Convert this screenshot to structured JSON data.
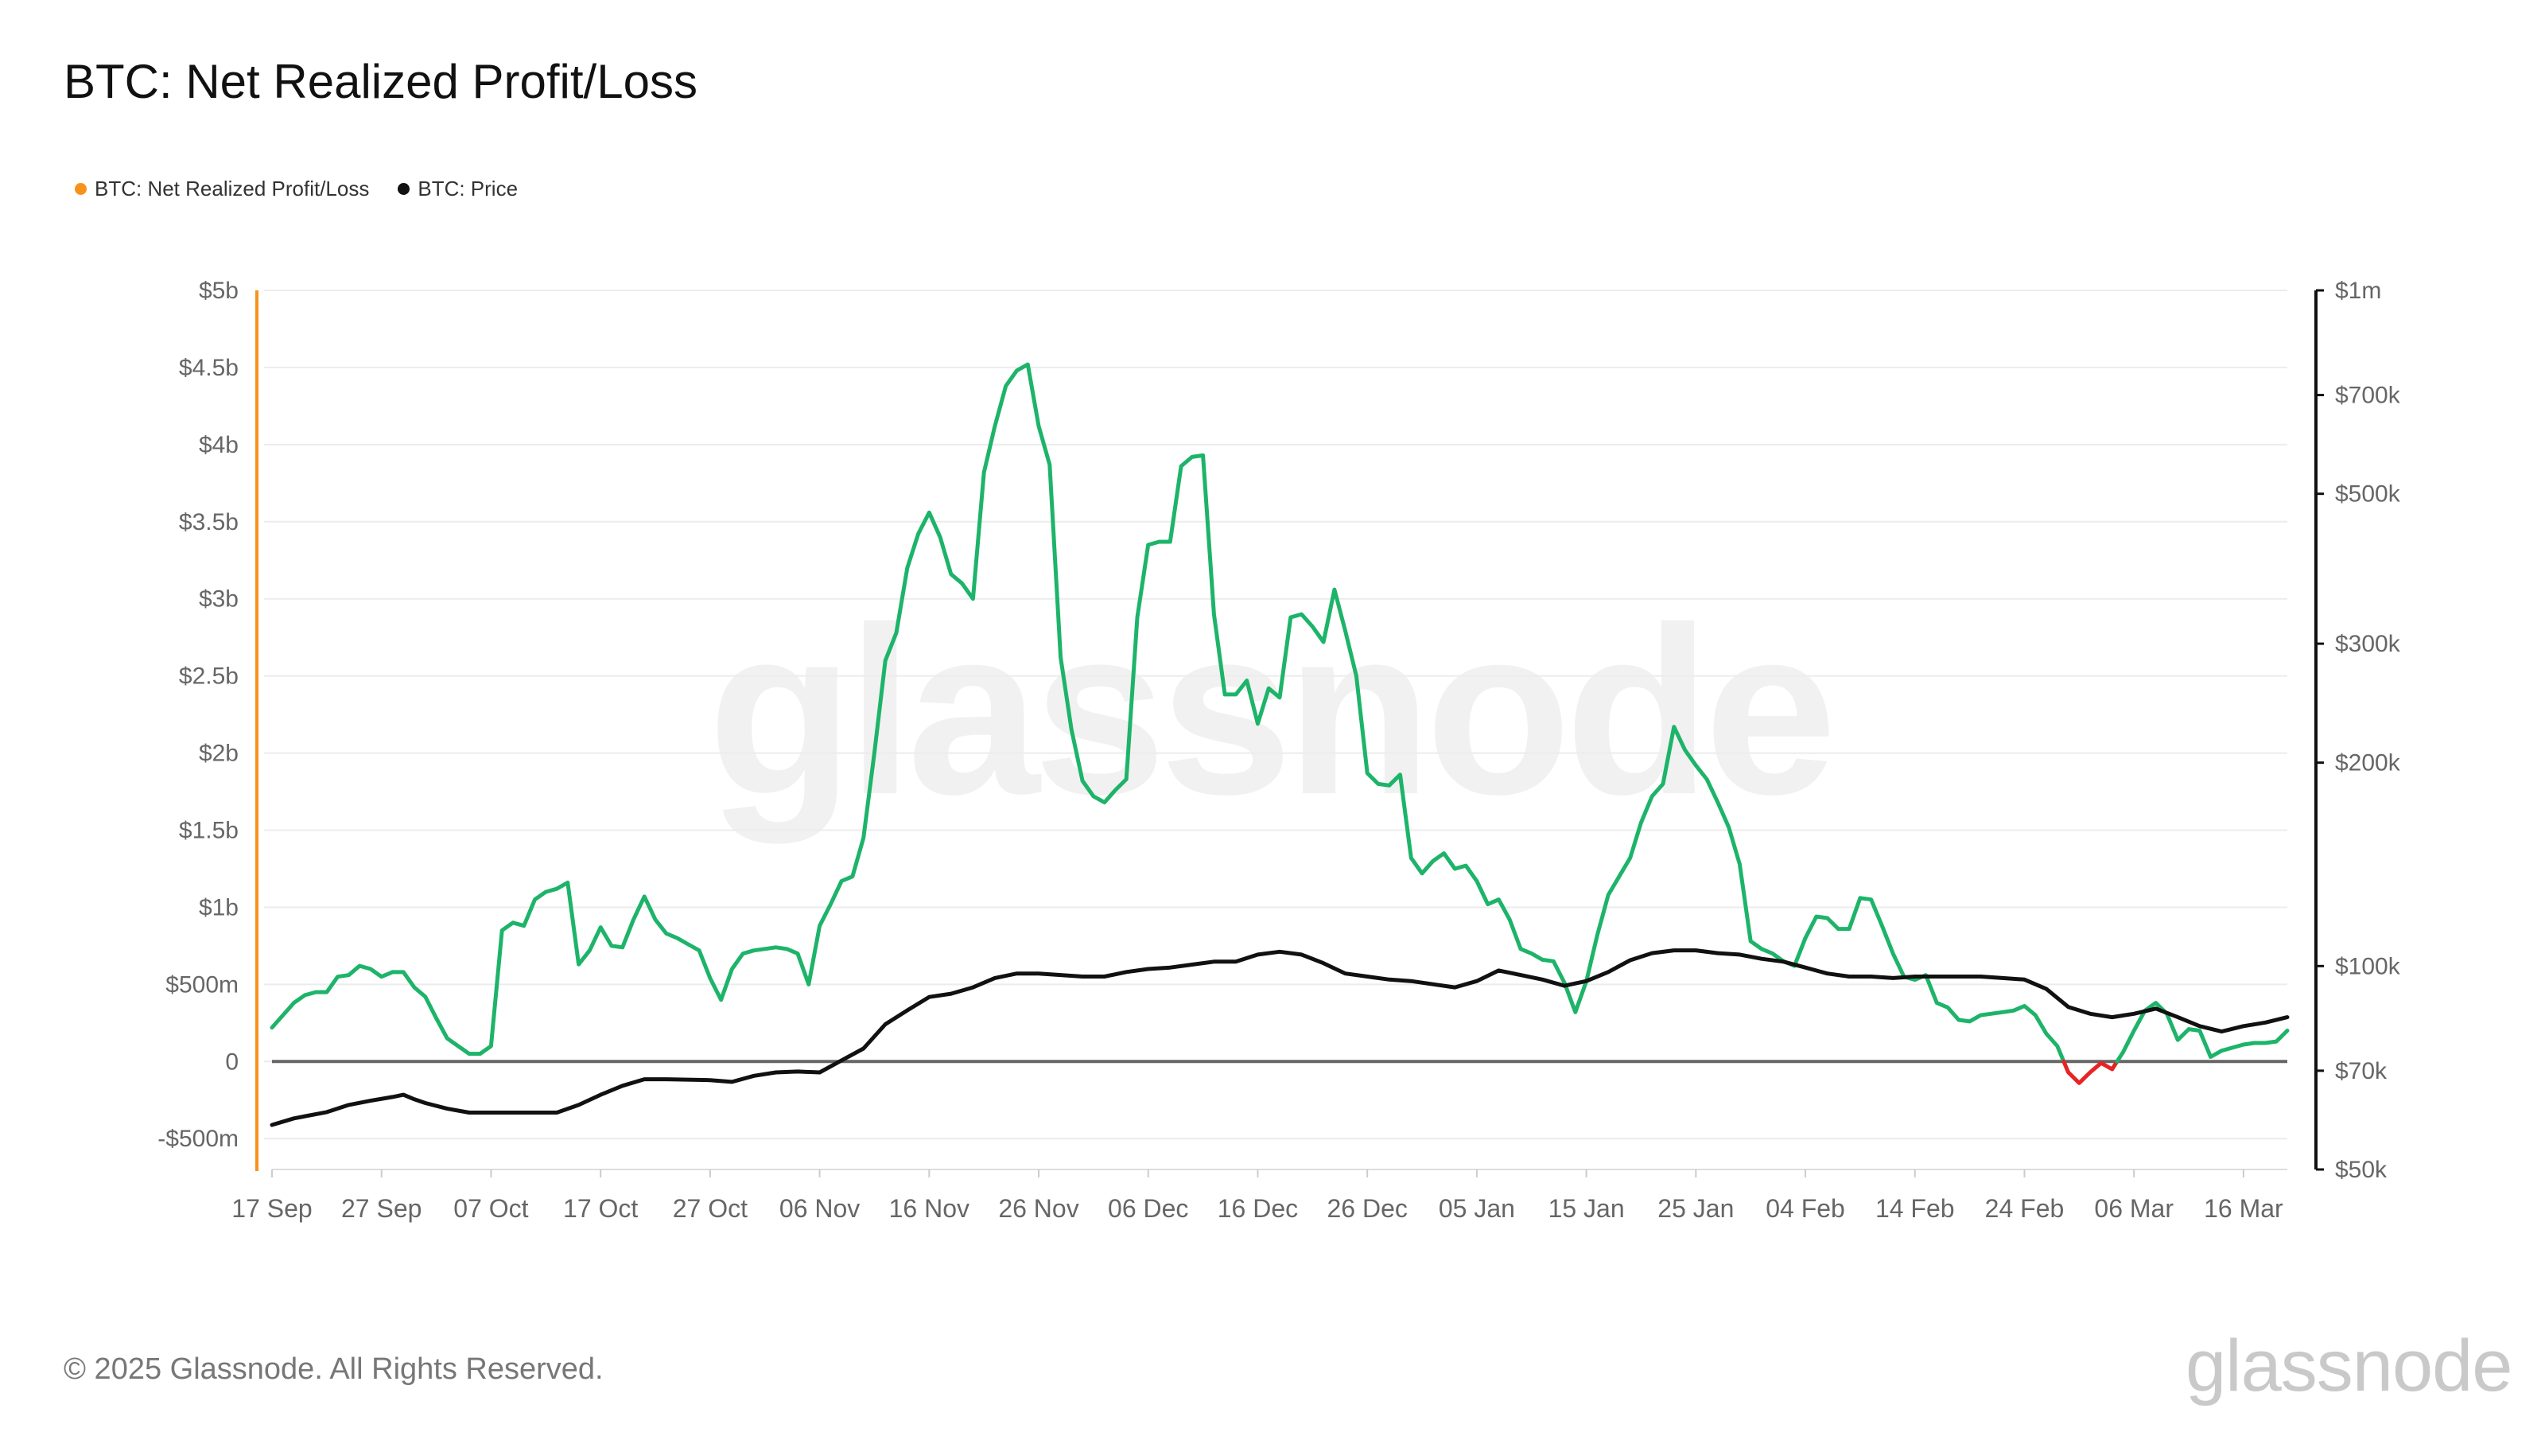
{
  "title": "BTC: Net Realized Profit/Loss",
  "legend": [
    {
      "label": "BTC: Net Realized Profit/Loss",
      "color": "#f7931a"
    },
    {
      "label": "BTC: Price",
      "color": "#111111"
    }
  ],
  "footer": "© 2025 Glassnode. All Rights Reserved.",
  "brand": "glassnode",
  "watermark": "glassnode",
  "chart_data": {
    "type": "line",
    "x_tick_labels": [
      "17 Sep",
      "27 Sep",
      "07 Oct",
      "17 Oct",
      "27 Oct",
      "06 Nov",
      "16 Nov",
      "26 Nov",
      "06 Dec",
      "16 Dec",
      "26 Dec",
      "05 Jan",
      "15 Jan",
      "25 Jan",
      "04 Feb",
      "14 Feb",
      "24 Feb",
      "06 Mar",
      "16 Mar"
    ],
    "x_range_days": [
      0,
      184
    ],
    "y_left_ticks": [
      "-$500m",
      "0",
      "$500m",
      "$1b",
      "$1.5b",
      "$2b",
      "$2.5b",
      "$3b",
      "$3.5b",
      "$4b",
      "$4.5b",
      "$5b"
    ],
    "y_left_tick_values": [
      -0.5,
      0,
      0.5,
      1,
      1.5,
      2,
      2.5,
      3,
      3.5,
      4,
      4.5,
      5
    ],
    "y_left_unit": "billions USD",
    "y_left_range": [
      -0.7,
      5
    ],
    "y_right_ticks": [
      "$50k",
      "$70k",
      "$100k",
      "$200k",
      "$300k",
      "$500k",
      "$700k",
      "$1m"
    ],
    "y_right_tick_values": [
      50000,
      70000,
      100000,
      200000,
      300000,
      500000,
      700000,
      1000000
    ],
    "y_right_scale": "log",
    "y_right_range": [
      50000,
      1000000
    ],
    "colors": {
      "profit": "#1db46a",
      "loss": "#e62424",
      "price": "#111111",
      "zero": "#666666",
      "left_axis": "#f7931a",
      "right_axis": "#111111",
      "grid": "#ececec"
    },
    "series": [
      {
        "name": "BTC: Net Realized Profit/Loss",
        "points": [
          [
            0,
            0.22
          ],
          [
            1,
            0.3
          ],
          [
            2,
            0.38
          ],
          [
            3,
            0.43
          ],
          [
            4,
            0.45
          ],
          [
            5,
            0.45
          ],
          [
            6,
            0.55
          ],
          [
            7,
            0.56
          ],
          [
            8,
            0.62
          ],
          [
            9,
            0.6
          ],
          [
            10,
            0.55
          ],
          [
            11,
            0.58
          ],
          [
            12,
            0.58
          ],
          [
            13,
            0.48
          ],
          [
            14,
            0.42
          ],
          [
            15,
            0.28
          ],
          [
            16,
            0.15
          ],
          [
            17,
            0.1
          ],
          [
            18,
            0.05
          ],
          [
            19,
            0.05
          ],
          [
            20,
            0.1
          ],
          [
            21,
            0.85
          ],
          [
            22,
            0.9
          ],
          [
            23,
            0.88
          ],
          [
            24,
            1.05
          ],
          [
            25,
            1.1
          ],
          [
            26,
            1.12
          ],
          [
            27,
            1.16
          ],
          [
            28,
            0.63
          ],
          [
            29,
            0.72
          ],
          [
            30,
            0.87
          ],
          [
            31,
            0.75
          ],
          [
            32,
            0.74
          ],
          [
            33,
            0.92
          ],
          [
            34,
            1.07
          ],
          [
            35,
            0.92
          ],
          [
            36,
            0.83
          ],
          [
            37,
            0.8
          ],
          [
            38,
            0.76
          ],
          [
            39,
            0.72
          ],
          [
            40,
            0.54
          ],
          [
            41,
            0.4
          ],
          [
            42,
            0.6
          ],
          [
            43,
            0.7
          ],
          [
            44,
            0.72
          ],
          [
            45,
            0.73
          ],
          [
            46,
            0.74
          ],
          [
            47,
            0.73
          ],
          [
            48,
            0.7
          ],
          [
            49,
            0.5
          ],
          [
            50,
            0.88
          ],
          [
            51,
            1.02
          ],
          [
            52,
            1.17
          ],
          [
            53,
            1.2
          ],
          [
            54,
            1.45
          ],
          [
            55,
            2.0
          ],
          [
            56,
            2.6
          ],
          [
            57,
            2.78
          ],
          [
            58,
            3.2
          ],
          [
            59,
            3.42
          ],
          [
            60,
            3.56
          ],
          [
            61,
            3.4
          ],
          [
            62,
            3.16
          ],
          [
            63,
            3.1
          ],
          [
            64,
            3.0
          ],
          [
            65,
            3.82
          ],
          [
            66,
            4.12
          ],
          [
            67,
            4.38
          ],
          [
            68,
            4.48
          ],
          [
            69,
            4.52
          ],
          [
            70,
            4.12
          ],
          [
            71,
            3.87
          ],
          [
            72,
            2.62
          ],
          [
            73,
            2.15
          ],
          [
            74,
            1.82
          ],
          [
            75,
            1.72
          ],
          [
            76,
            1.68
          ],
          [
            77,
            1.76
          ],
          [
            78,
            1.83
          ],
          [
            79,
            2.88
          ],
          [
            80,
            3.35
          ],
          [
            81,
            3.37
          ],
          [
            82,
            3.37
          ],
          [
            83,
            3.86
          ],
          [
            84,
            3.92
          ],
          [
            85,
            3.93
          ],
          [
            86,
            2.9
          ],
          [
            87,
            2.38
          ],
          [
            88,
            2.38
          ],
          [
            89,
            2.47
          ],
          [
            90,
            2.19
          ],
          [
            91,
            2.42
          ],
          [
            92,
            2.36
          ],
          [
            93,
            2.88
          ],
          [
            94,
            2.9
          ],
          [
            95,
            2.82
          ],
          [
            96,
            2.72
          ],
          [
            97,
            3.06
          ],
          [
            98,
            2.79
          ],
          [
            99,
            2.5
          ],
          [
            100,
            1.87
          ],
          [
            101,
            1.8
          ],
          [
            102,
            1.79
          ],
          [
            103,
            1.86
          ],
          [
            104,
            1.32
          ],
          [
            105,
            1.22
          ],
          [
            106,
            1.3
          ],
          [
            107,
            1.35
          ],
          [
            108,
            1.25
          ],
          [
            109,
            1.27
          ],
          [
            110,
            1.17
          ],
          [
            111,
            1.02
          ],
          [
            112,
            1.05
          ],
          [
            113,
            0.92
          ],
          [
            114,
            0.73
          ],
          [
            115,
            0.7
          ],
          [
            116,
            0.66
          ],
          [
            117,
            0.65
          ],
          [
            118,
            0.51
          ],
          [
            119,
            0.32
          ],
          [
            120,
            0.52
          ],
          [
            121,
            0.82
          ],
          [
            122,
            1.08
          ],
          [
            123,
            1.2
          ],
          [
            124,
            1.32
          ],
          [
            125,
            1.55
          ],
          [
            126,
            1.72
          ],
          [
            127,
            1.8
          ],
          [
            128,
            2.17
          ],
          [
            129,
            2.02
          ],
          [
            130,
            1.92
          ],
          [
            131,
            1.83
          ],
          [
            132,
            1.68
          ],
          [
            133,
            1.52
          ],
          [
            134,
            1.28
          ],
          [
            135,
            0.78
          ],
          [
            136,
            0.73
          ],
          [
            137,
            0.7
          ],
          [
            138,
            0.65
          ],
          [
            139,
            0.62
          ],
          [
            140,
            0.8
          ],
          [
            141,
            0.94
          ],
          [
            142,
            0.93
          ],
          [
            143,
            0.86
          ],
          [
            144,
            0.86
          ],
          [
            145,
            1.06
          ],
          [
            146,
            1.05
          ],
          [
            147,
            0.88
          ],
          [
            148,
            0.7
          ],
          [
            149,
            0.55
          ],
          [
            150,
            0.53
          ],
          [
            151,
            0.56
          ],
          [
            152,
            0.38
          ],
          [
            153,
            0.35
          ],
          [
            154,
            0.27
          ],
          [
            155,
            0.26
          ],
          [
            156,
            0.3
          ],
          [
            157,
            0.31
          ],
          [
            158,
            0.32
          ],
          [
            159,
            0.33
          ],
          [
            160,
            0.36
          ],
          [
            161,
            0.3
          ],
          [
            162,
            0.18
          ],
          [
            163,
            0.1
          ],
          [
            164,
            -0.07
          ],
          [
            165,
            -0.14
          ],
          [
            166,
            -0.07
          ],
          [
            167,
            -0.01
          ],
          [
            168,
            -0.05
          ],
          [
            169,
            0.06
          ],
          [
            170,
            0.2
          ],
          [
            171,
            0.33
          ],
          [
            172,
            0.38
          ],
          [
            173,
            0.31
          ],
          [
            174,
            0.14
          ],
          [
            175,
            0.21
          ],
          [
            176,
            0.2
          ],
          [
            177,
            0.03
          ],
          [
            178,
            0.07
          ],
          [
            179,
            0.09
          ],
          [
            180,
            0.11
          ],
          [
            181,
            0.12
          ],
          [
            182,
            0.12
          ],
          [
            183,
            0.13
          ],
          [
            184,
            0.2
          ]
        ]
      },
      {
        "name": "BTC: Price",
        "points": [
          [
            0,
            58200
          ],
          [
            2,
            59500
          ],
          [
            5,
            60800
          ],
          [
            7,
            62300
          ],
          [
            9,
            63200
          ],
          [
            11,
            64000
          ],
          [
            12,
            64500
          ],
          [
            13,
            63500
          ],
          [
            14,
            62700
          ],
          [
            16,
            61500
          ],
          [
            18,
            60700
          ],
          [
            20,
            60700
          ],
          [
            22,
            60700
          ],
          [
            26,
            60700
          ],
          [
            28,
            62300
          ],
          [
            30,
            64500
          ],
          [
            32,
            66500
          ],
          [
            34,
            68000
          ],
          [
            36,
            68000
          ],
          [
            40,
            67800
          ],
          [
            42,
            67400
          ],
          [
            44,
            68800
          ],
          [
            46,
            69600
          ],
          [
            48,
            69800
          ],
          [
            50,
            69600
          ],
          [
            52,
            72500
          ],
          [
            54,
            75500
          ],
          [
            56,
            82000
          ],
          [
            58,
            86000
          ],
          [
            60,
            90000
          ],
          [
            62,
            91000
          ],
          [
            64,
            93000
          ],
          [
            66,
            96000
          ],
          [
            68,
            97500
          ],
          [
            70,
            97500
          ],
          [
            72,
            97000
          ],
          [
            74,
            96500
          ],
          [
            76,
            96500
          ],
          [
            78,
            98000
          ],
          [
            80,
            99000
          ],
          [
            82,
            99500
          ],
          [
            84,
            100500
          ],
          [
            86,
            101500
          ],
          [
            88,
            101500
          ],
          [
            90,
            104000
          ],
          [
            92,
            105000
          ],
          [
            94,
            104000
          ],
          [
            96,
            101000
          ],
          [
            98,
            97500
          ],
          [
            100,
            96500
          ],
          [
            102,
            95500
          ],
          [
            104,
            95000
          ],
          [
            106,
            94000
          ],
          [
            108,
            93000
          ],
          [
            110,
            95000
          ],
          [
            112,
            98500
          ],
          [
            114,
            97000
          ],
          [
            116,
            95500
          ],
          [
            118,
            93500
          ],
          [
            120,
            95000
          ],
          [
            122,
            98000
          ],
          [
            124,
            102000
          ],
          [
            126,
            104500
          ],
          [
            128,
            105500
          ],
          [
            130,
            105500
          ],
          [
            132,
            104500
          ],
          [
            134,
            104000
          ],
          [
            136,
            102500
          ],
          [
            138,
            101500
          ],
          [
            140,
            99500
          ],
          [
            142,
            97500
          ],
          [
            144,
            96500
          ],
          [
            146,
            96500
          ],
          [
            148,
            96000
          ],
          [
            150,
            96500
          ],
          [
            152,
            96500
          ],
          [
            154,
            96500
          ],
          [
            156,
            96500
          ],
          [
            158,
            96000
          ],
          [
            160,
            95500
          ],
          [
            162,
            92500
          ],
          [
            164,
            87000
          ],
          [
            166,
            85000
          ],
          [
            168,
            84000
          ],
          [
            170,
            85000
          ],
          [
            172,
            86500
          ],
          [
            174,
            84000
          ],
          [
            176,
            81500
          ],
          [
            178,
            80000
          ],
          [
            180,
            81500
          ],
          [
            182,
            82500
          ],
          [
            184,
            84000
          ]
        ]
      }
    ]
  }
}
